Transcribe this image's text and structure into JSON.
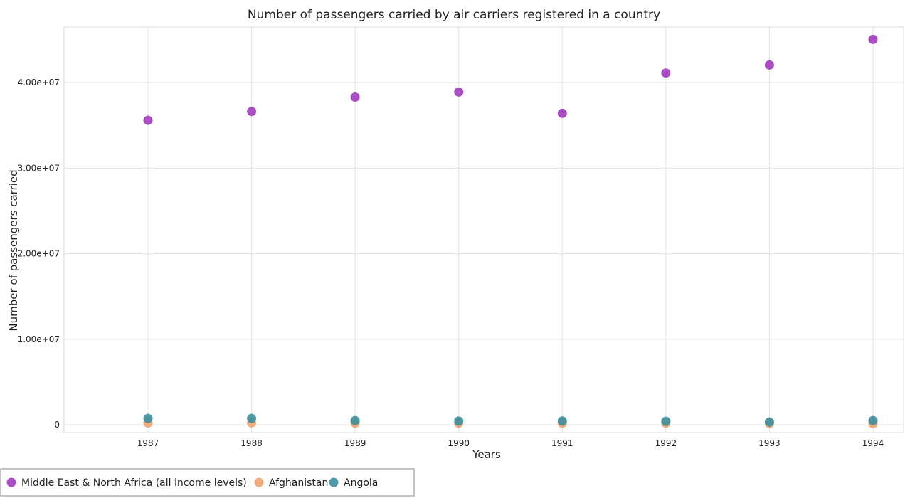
{
  "chart_data": {
    "type": "scatter",
    "title": "Number of passengers carried by air carriers registered in a country",
    "xlabel": "Years",
    "ylabel": "Number of passengers carried",
    "categories": [
      "1987",
      "1988",
      "1989",
      "1990",
      "1991",
      "1992",
      "1993",
      "1994"
    ],
    "yticks": [
      0,
      10000000,
      20000000,
      30000000,
      40000000
    ],
    "ytick_labels": [
      "0",
      "1.00e+07",
      "2.00e+07",
      "3.00e+07",
      "4.00e+07"
    ],
    "ylim": [
      -900000,
      46500000
    ],
    "grid": true,
    "legend_position": "bottom-left",
    "series": [
      {
        "name": "Middle East & North Africa (all income levels)",
        "color": "#a23bbf",
        "values": [
          35600000,
          36630000,
          38310000,
          38910000,
          36410000,
          41120000,
          42060000,
          45050000
        ]
      },
      {
        "name": "Afghanistan",
        "color": "#f0a36c",
        "values": [
          220000,
          240000,
          200000,
          200000,
          200000,
          200000,
          150000,
          150000
        ]
      },
      {
        "name": "Angola",
        "color": "#3b8e9d",
        "values": [
          750000,
          750000,
          500000,
          440000,
          450000,
          420000,
          330000,
          500000
        ]
      }
    ]
  }
}
